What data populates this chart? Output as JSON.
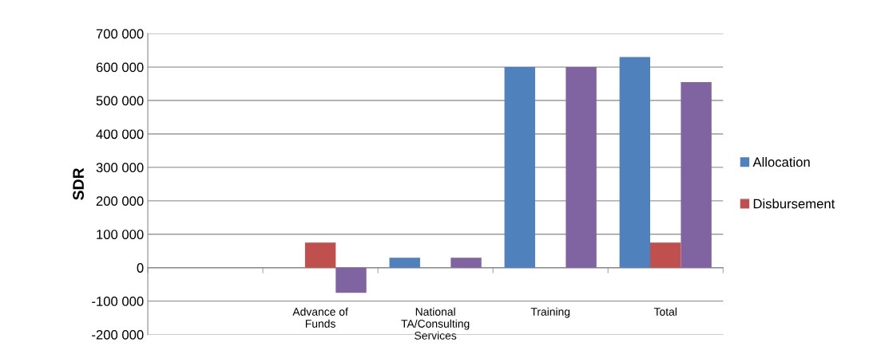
{
  "chart_data": {
    "type": "bar",
    "ylabel": "SDR",
    "categories": [
      null,
      "Advance of\nFunds",
      "National\nTA/Consulting\nServices",
      "Training",
      "Total"
    ],
    "series": [
      {
        "name": "Allocation",
        "color": "#4f81bd",
        "values": [
          null,
          null,
          30000,
          600000,
          630000
        ]
      },
      {
        "name": "Disbursement",
        "color": "#c0504d",
        "values": [
          null,
          75000,
          null,
          null,
          75000
        ]
      },
      {
        "color": "#8064a2",
        "values": [
          null,
          -75000,
          30000,
          600000,
          555000
        ]
      }
    ],
    "ylim": [
      -200000,
      700000
    ],
    "yticks": [
      {
        "value": -200000,
        "label": "-200 000"
      },
      {
        "value": -100000,
        "label": "-100 000"
      },
      {
        "value": 0,
        "label": "0"
      },
      {
        "value": 100000,
        "label": "100 000"
      },
      {
        "value": 200000,
        "label": "200 000"
      },
      {
        "value": 300000,
        "label": "300 000"
      },
      {
        "value": 400000,
        "label": "400 000"
      },
      {
        "value": 500000,
        "label": "500 000"
      },
      {
        "value": 600000,
        "label": "600 000"
      },
      {
        "value": 700000,
        "label": "700 000"
      }
    ],
    "grid": "y",
    "legend": "right"
  }
}
